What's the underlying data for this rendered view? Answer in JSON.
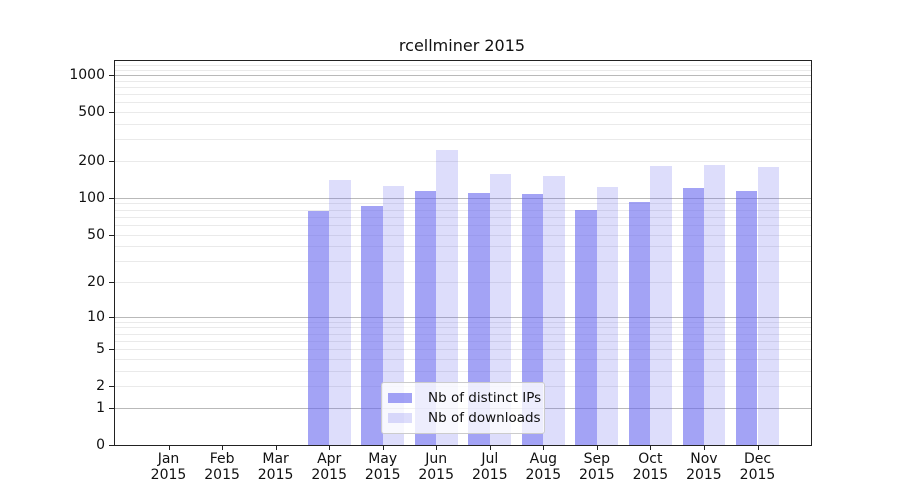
{
  "title": "rcellminer 2015",
  "legend": {
    "items": [
      {
        "label": "Nb of distinct IPs",
        "color_key": "bar_dark"
      },
      {
        "label": "Nb of downloads",
        "color_key": "bar_light"
      }
    ]
  },
  "colors": {
    "bar_dark": "rgba(102,102,238,0.6)",
    "bar_light": "rgba(102,102,238,0.22)",
    "grid_major": "#b9b9b9",
    "grid_minor": "#eaeaea",
    "axis": "#222222"
  },
  "chart_data": {
    "type": "bar",
    "title": "rcellminer 2015",
    "scale": "log1p",
    "grid": true,
    "legend_position": "lower center",
    "x_year": "2015",
    "categories": [
      "Jan",
      "Feb",
      "Mar",
      "Apr",
      "May",
      "Jun",
      "Jul",
      "Aug",
      "Sep",
      "Oct",
      "Nov",
      "Dec"
    ],
    "series": [
      {
        "name": "Nb of distinct IPs",
        "values": [
          0,
          0,
          0,
          78,
          86,
          114,
          110,
          108,
          80,
          92,
          121,
          114
        ]
      },
      {
        "name": "Nb of downloads",
        "values": [
          0,
          0,
          0,
          140,
          125,
          245,
          156,
          152,
          122,
          183,
          187,
          180
        ]
      }
    ],
    "yticks": [
      1000,
      500,
      200,
      100,
      50,
      20,
      10,
      5,
      2,
      1,
      0
    ],
    "ytick_labels": [
      "1000",
      "500",
      "200",
      "100",
      "50",
      "20",
      "10",
      "5",
      "2",
      "1",
      "0"
    ],
    "grid_major_values": [
      1,
      10,
      100,
      1000
    ],
    "grid_minor_values": [
      2,
      3,
      4,
      5,
      6,
      7,
      8,
      9,
      20,
      30,
      40,
      50,
      60,
      70,
      80,
      90,
      200,
      300,
      400,
      500,
      600,
      700,
      800,
      900,
      1100,
      1200
    ],
    "ylim_top_value": 1300
  }
}
